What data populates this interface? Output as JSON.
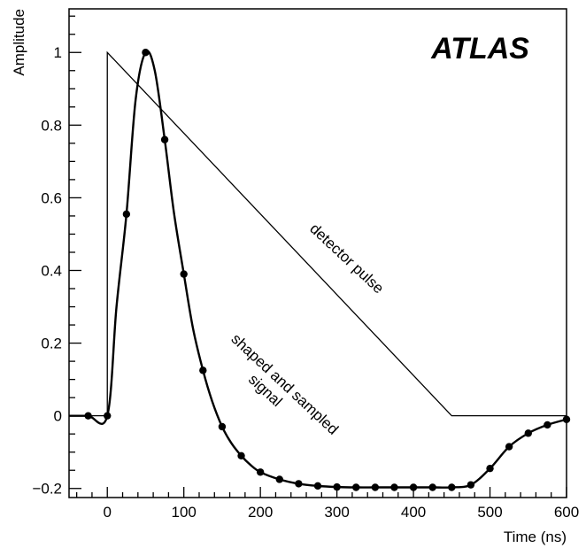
{
  "chart_data": {
    "type": "line",
    "title": "",
    "xlabel": "Time (ns)",
    "ylabel": "Amplitude",
    "xlim": [
      -50,
      600
    ],
    "ylim": [
      -0.225,
      1.12
    ],
    "x_ticks": [
      0,
      100,
      200,
      300,
      400,
      500,
      600
    ],
    "y_ticks": [
      -0.2,
      0,
      0.2,
      0.4,
      0.6,
      0.8,
      1
    ],
    "x_tick_labels": [
      "0",
      "100",
      "200",
      "300",
      "400",
      "500",
      "600"
    ],
    "y_tick_labels": [
      "−0.2",
      "0",
      "0.2",
      "0.4",
      "0.6",
      "0.8",
      "1"
    ],
    "grid": false,
    "logo": "ATLAS",
    "annotations": {
      "detector": "detector pulse",
      "shaped_line1": "shaped and sampled",
      "shaped_line2": "signal"
    },
    "series": [
      {
        "kind": "detector",
        "x": [
          -50,
          0,
          0,
          450,
          600
        ],
        "y": [
          0,
          0,
          1,
          0,
          0
        ]
      },
      {
        "kind": "shaped",
        "x": [
          -50,
          -25,
          0,
          12,
          25,
          37,
          50,
          62,
          75,
          87,
          100,
          112,
          125,
          137,
          150,
          162,
          175,
          187,
          200,
          225,
          250,
          275,
          300,
          325,
          350,
          375,
          400,
          425,
          450,
          475,
          500,
          525,
          550,
          575,
          600
        ],
        "y": [
          0,
          0,
          0,
          0.3,
          0.555,
          0.87,
          1.0,
          0.95,
          0.76,
          0.56,
          0.39,
          0.24,
          0.125,
          0.04,
          -0.03,
          -0.075,
          -0.11,
          -0.135,
          -0.155,
          -0.175,
          -0.187,
          -0.193,
          -0.196,
          -0.197,
          -0.197,
          -0.197,
          -0.197,
          -0.197,
          -0.197,
          -0.19,
          -0.145,
          -0.085,
          -0.048,
          -0.025,
          -0.01
        ]
      },
      {
        "kind": "samples",
        "x": [
          -25,
          0,
          25,
          50,
          75,
          100,
          125,
          150,
          175,
          200,
          225,
          250,
          275,
          300,
          325,
          350,
          375,
          400,
          425,
          450,
          475,
          500,
          525,
          550,
          575,
          600
        ],
        "y": [
          0,
          0,
          0.555,
          1.0,
          0.76,
          0.39,
          0.125,
          -0.03,
          -0.11,
          -0.155,
          -0.175,
          -0.187,
          -0.193,
          -0.196,
          -0.197,
          -0.197,
          -0.197,
          -0.197,
          -0.197,
          -0.197,
          -0.19,
          -0.145,
          -0.085,
          -0.048,
          -0.025,
          -0.01
        ]
      }
    ]
  }
}
